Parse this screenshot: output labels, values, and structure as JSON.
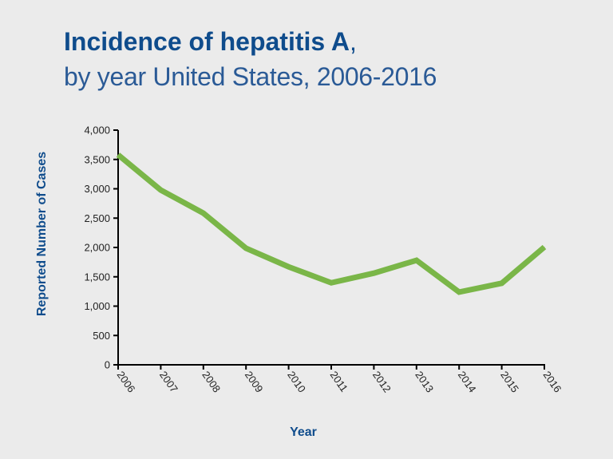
{
  "chart_data": {
    "type": "line",
    "title": "Incidence of hepatitis A",
    "title_suffix": ",",
    "subtitle": "by year United States, 2006-2016",
    "xlabel": "Year",
    "ylabel": "Reported Number of Cases",
    "categories": [
      "2006",
      "2007",
      "2008",
      "2009",
      "2010",
      "2011",
      "2012",
      "2013",
      "2014",
      "2015",
      "2016"
    ],
    "values": [
      3579,
      2979,
      2585,
      1987,
      1670,
      1398,
      1562,
      1781,
      1239,
      1390,
      2007
    ],
    "ylim": [
      0,
      4000
    ],
    "yticks": [
      0,
      500,
      1000,
      1500,
      2000,
      2500,
      3000,
      3500,
      4000
    ],
    "ytick_labels": [
      "0",
      "500",
      "1,000",
      "1,500",
      "2,000",
      "2,500",
      "3,000",
      "3,500",
      "4,000"
    ],
    "grid": false,
    "legend": "none",
    "colors": {
      "line": "#7ab648",
      "title": "#0f4c8c",
      "axis_label": "#0f4c8c",
      "axis": "#000000"
    }
  }
}
